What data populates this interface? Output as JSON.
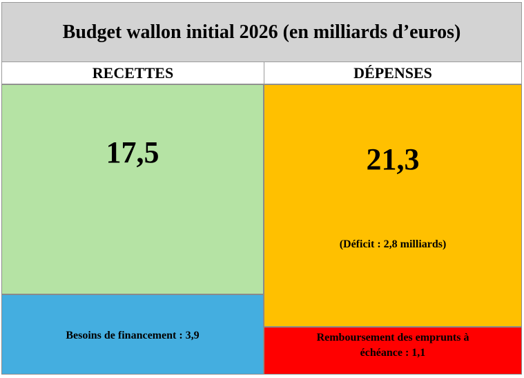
{
  "title": "Budget wallon initial 2026 (en milliards d’euros)",
  "recettes": {
    "header": "RECETTES",
    "value": "17,5",
    "color": "#b5e3a4"
  },
  "financement": {
    "label": "Besoins de financement : 3,9",
    "color": "#44aee0"
  },
  "depenses": {
    "header": "DÉPENSES",
    "value": "21,3",
    "deficit": "(Déficit : 2,8 milliards)",
    "color": "#ffc000"
  },
  "remboursement": {
    "line1": "Remboursement des emprunts à",
    "line2": "échéance :  1,1",
    "color": "#ff0000"
  },
  "title_color": "#d3d3d3"
}
